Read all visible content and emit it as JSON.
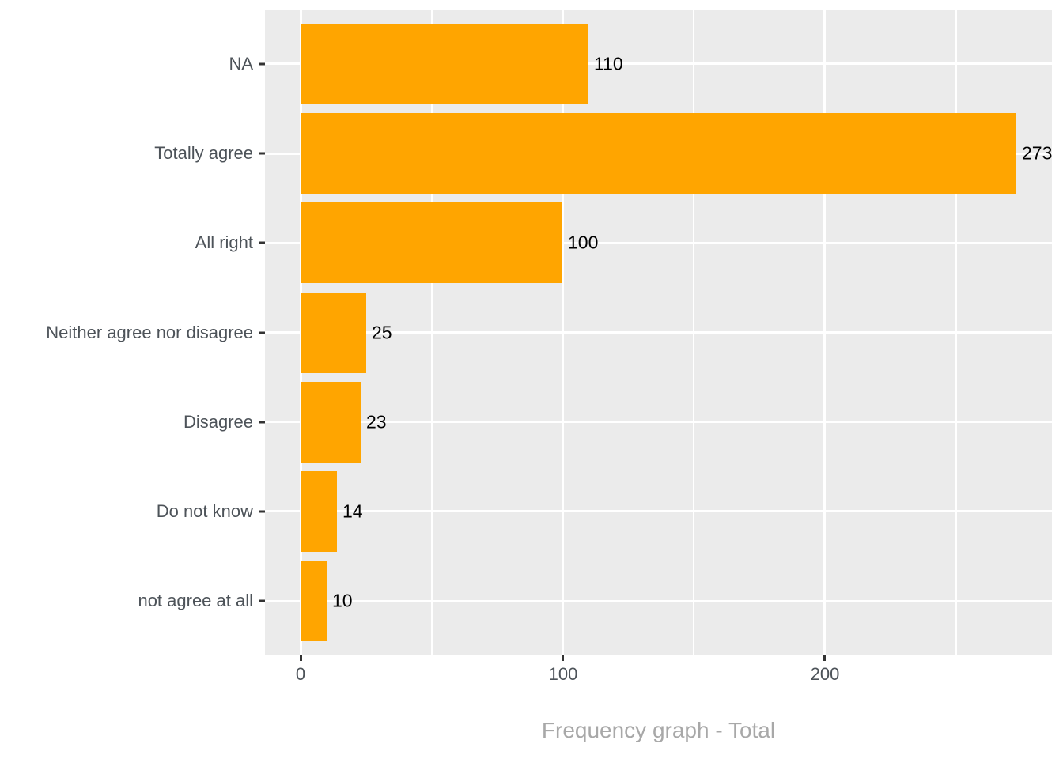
{
  "chart_data": {
    "type": "bar",
    "orientation": "horizontal",
    "title": "Frequency graph - Total",
    "xlabel": "",
    "ylabel": "",
    "categories": [
      "NA",
      "Totally agree",
      "All right",
      "Neither agree nor disagree",
      "Disagree",
      "Do not know",
      "not agree at all"
    ],
    "values": [
      110,
      273,
      100,
      25,
      23,
      14,
      10
    ],
    "value_labels": [
      "110",
      "273",
      "100",
      "25",
      "23",
      "14",
      "10"
    ],
    "x_major_ticks": [
      0,
      100,
      200
    ],
    "x_tick_labels": [
      "0",
      "100",
      "200"
    ],
    "x_minor_gridlines": [
      50,
      150,
      250
    ],
    "xlim": [
      -13.65,
      286.65
    ],
    "grid": true,
    "legend": "none",
    "colors": {
      "bar": "#FFA500",
      "panel_background": "#EBEBEB",
      "grid_major": "#FFFFFF",
      "grid_minor": "#FFFFFF",
      "axis_text": "#4d5359",
      "tick_mark": "#333333",
      "value_label": "#000000",
      "title": "#A8A8A8",
      "figure_background": "#FFFFFF"
    }
  }
}
